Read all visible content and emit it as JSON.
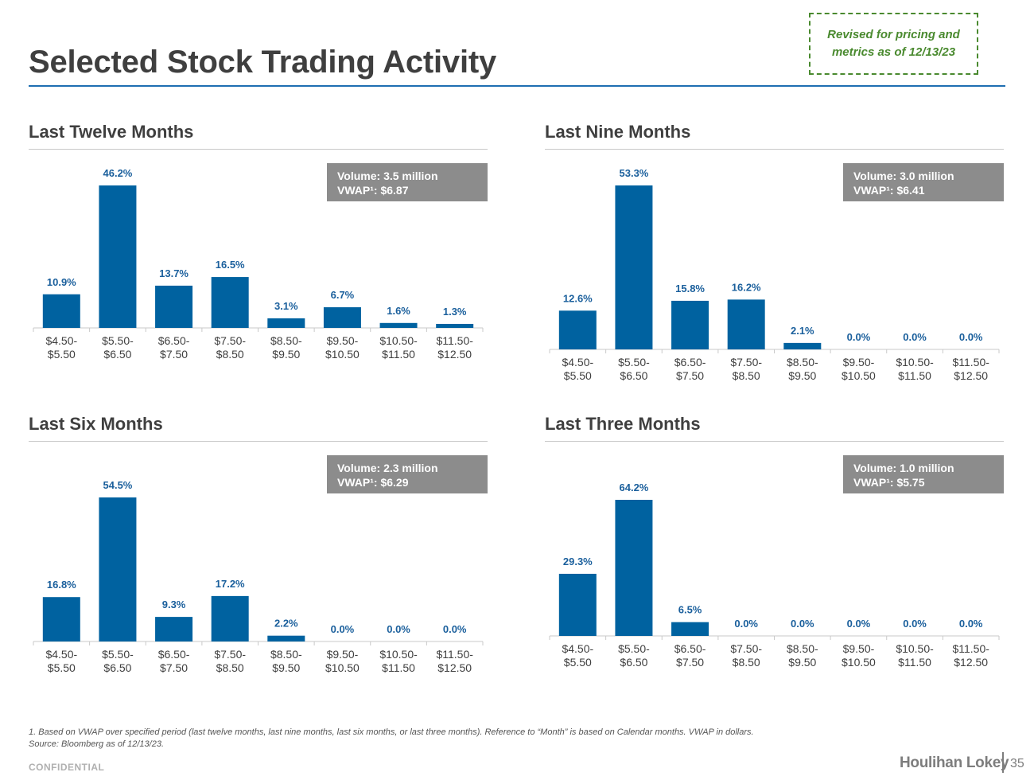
{
  "page": {
    "title": "Selected Stock Trading Activity",
    "revised_note": "Revised for pricing and metrics as of 12/13/23",
    "footnote_1": "1. Based on VWAP over specified period (last twelve months, last nine months, last six months, or last three months). Reference to “Month” is based on Calendar months. VWAP in dollars.",
    "footnote_2": "Source: Bloomberg as of 12/13/23.",
    "confidential": "CONFIDENTIAL",
    "brand": "Houlihan Lokey",
    "page_number": "35"
  },
  "colors": {
    "bar": "#0062a0",
    "title_rule": "#1f6fb2",
    "revised_border": "#4a8a2f",
    "volume_box": "#8c8c8c"
  },
  "chart_data": [
    {
      "type": "bar",
      "title": "Last Twelve Months",
      "volume": "Volume: 3.5 million",
      "vwap": "VWAP¹: $6.87",
      "categories": [
        [
          "$4.50-",
          "$5.50"
        ],
        [
          "$5.50-",
          "$6.50"
        ],
        [
          "$6.50-",
          "$7.50"
        ],
        [
          "$7.50-",
          "$8.50"
        ],
        [
          "$8.50-",
          "$9.50"
        ],
        [
          "$9.50-",
          "$10.50"
        ],
        [
          "$10.50-",
          "$11.50"
        ],
        [
          "$11.50-",
          "$12.50"
        ]
      ],
      "values": [
        10.9,
        46.2,
        13.7,
        16.5,
        3.1,
        6.7,
        1.6,
        1.3
      ],
      "labels": [
        "10.9%",
        "46.2%",
        "13.7%",
        "16.5%",
        "3.1%",
        "6.7%",
        "1.6%",
        "1.3%"
      ],
      "ylim": [
        0,
        46.2
      ]
    },
    {
      "type": "bar",
      "title": "Last Nine Months",
      "volume": "Volume: 3.0 million",
      "vwap": "VWAP¹: $6.41",
      "categories": [
        [
          "$4.50-",
          "$5.50"
        ],
        [
          "$5.50-",
          "$6.50"
        ],
        [
          "$6.50-",
          "$7.50"
        ],
        [
          "$7.50-",
          "$8.50"
        ],
        [
          "$8.50-",
          "$9.50"
        ],
        [
          "$9.50-",
          "$10.50"
        ],
        [
          "$10.50-",
          "$11.50"
        ],
        [
          "$11.50-",
          "$12.50"
        ]
      ],
      "values": [
        12.6,
        53.3,
        15.8,
        16.2,
        2.1,
        0.0,
        0.0,
        0.0
      ],
      "labels": [
        "12.6%",
        "53.3%",
        "15.8%",
        "16.2%",
        "2.1%",
        "0.0%",
        "0.0%",
        "0.0%"
      ],
      "ylim": [
        0,
        53.3
      ]
    },
    {
      "type": "bar",
      "title": "Last Six Months",
      "volume": "Volume: 2.3 million",
      "vwap": "VWAP¹: $6.29",
      "categories": [
        [
          "$4.50-",
          "$5.50"
        ],
        [
          "$5.50-",
          "$6.50"
        ],
        [
          "$6.50-",
          "$7.50"
        ],
        [
          "$7.50-",
          "$8.50"
        ],
        [
          "$8.50-",
          "$9.50"
        ],
        [
          "$9.50-",
          "$10.50"
        ],
        [
          "$10.50-",
          "$11.50"
        ],
        [
          "$11.50-",
          "$12.50"
        ]
      ],
      "values": [
        16.8,
        54.5,
        9.3,
        17.2,
        2.2,
        0.0,
        0.0,
        0.0
      ],
      "labels": [
        "16.8%",
        "54.5%",
        "9.3%",
        "17.2%",
        "2.2%",
        "0.0%",
        "0.0%",
        "0.0%"
      ],
      "ylim": [
        0,
        54.5
      ]
    },
    {
      "type": "bar",
      "title": "Last Three Months",
      "volume": "Volume: 1.0 million",
      "vwap": "VWAP¹: $5.75",
      "categories": [
        [
          "$4.50-",
          "$5.50"
        ],
        [
          "$5.50-",
          "$6.50"
        ],
        [
          "$6.50-",
          "$7.50"
        ],
        [
          "$7.50-",
          "$8.50"
        ],
        [
          "$8.50-",
          "$9.50"
        ],
        [
          "$9.50-",
          "$10.50"
        ],
        [
          "$10.50-",
          "$11.50"
        ],
        [
          "$11.50-",
          "$12.50"
        ]
      ],
      "values": [
        29.3,
        64.2,
        6.5,
        0.0,
        0.0,
        0.0,
        0.0,
        0.0
      ],
      "labels": [
        "29.3%",
        "64.2%",
        "6.5%",
        "0.0%",
        "0.0%",
        "0.0%",
        "0.0%",
        "0.0%"
      ],
      "ylim": [
        0,
        64.2
      ]
    }
  ]
}
